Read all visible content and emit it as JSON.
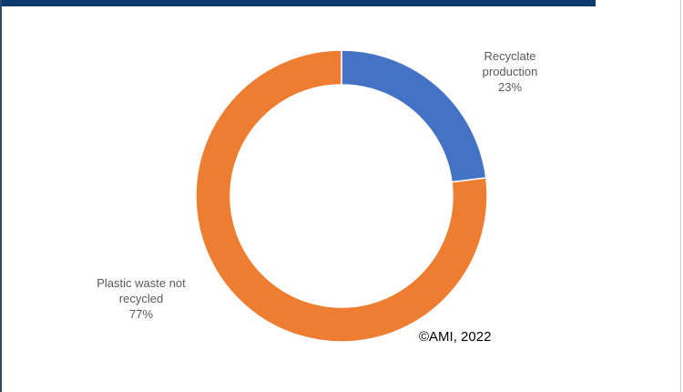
{
  "chart_data": {
    "type": "pie",
    "variant": "donut",
    "categories": [
      "Recyclate production",
      "Plastic waste not recycled"
    ],
    "values": [
      23,
      77
    ],
    "data_labels": [
      {
        "name_line1": "Recyclate",
        "name_line2": "production",
        "value": "23%"
      },
      {
        "name_line1": "Plastic waste not",
        "name_line2": "recycled",
        "value": "77%"
      }
    ],
    "colors": [
      "#4472c4",
      "#ed7d31"
    ],
    "annotation": "©AMI, 2022"
  }
}
